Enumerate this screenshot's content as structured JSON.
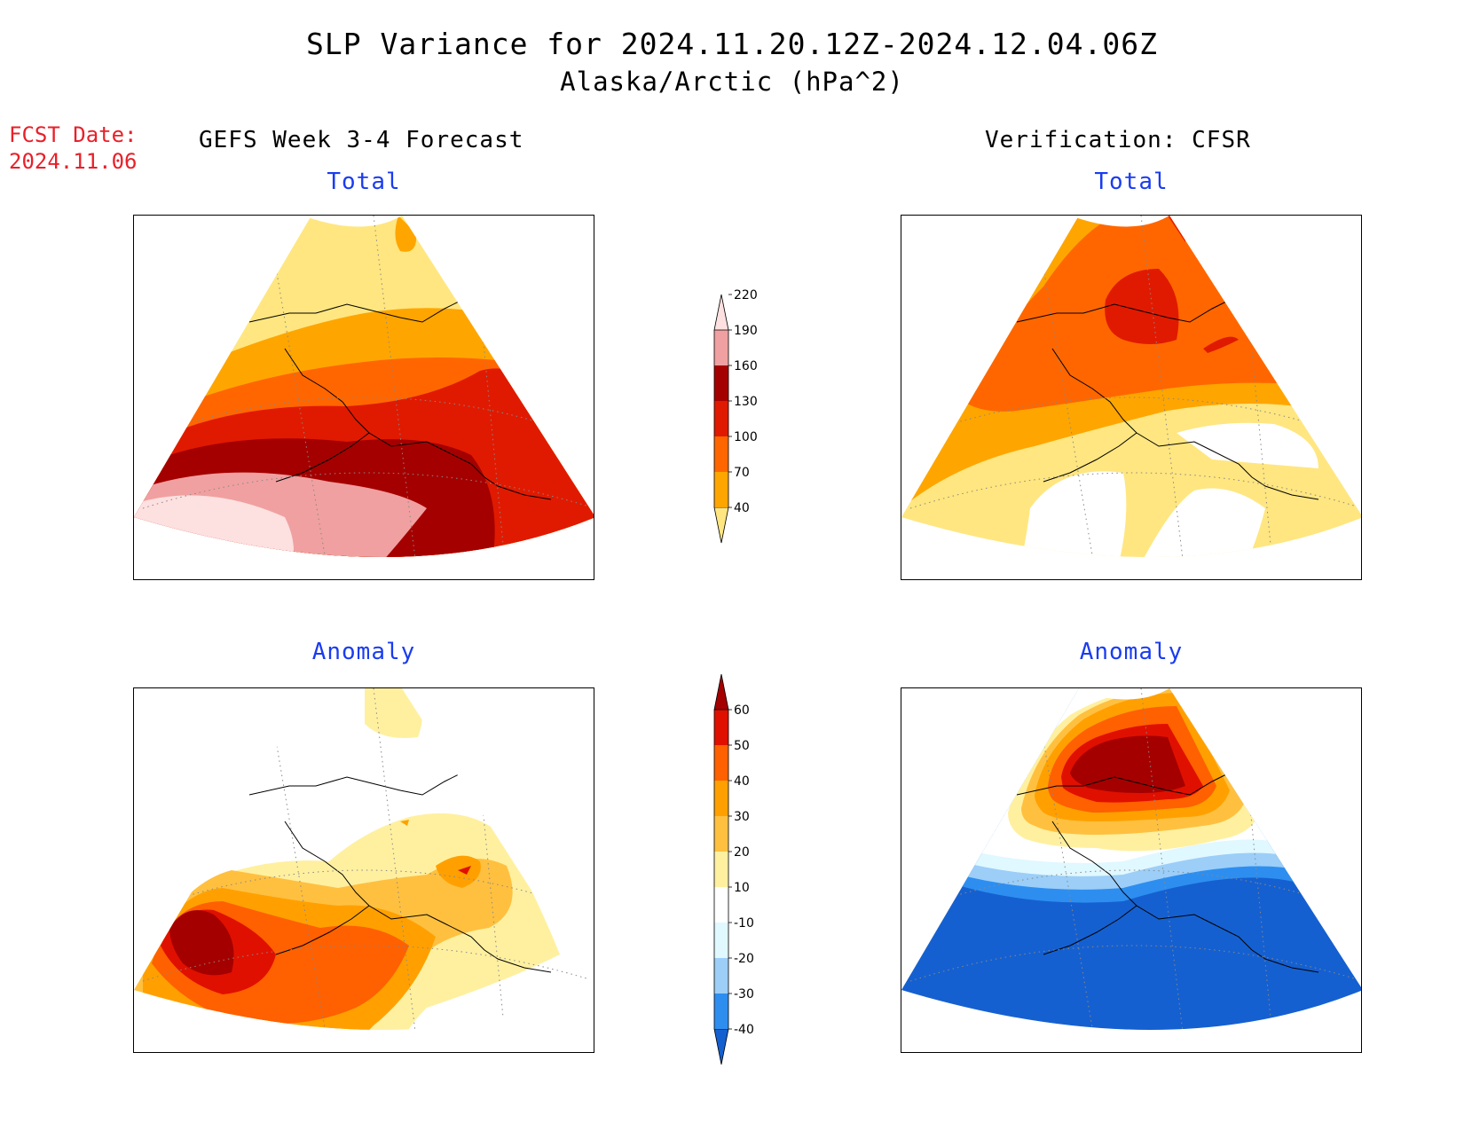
{
  "header": {
    "title": "SLP Variance for 2024.11.20.12Z-2024.12.04.06Z",
    "subtitle": "Alaska/Arctic (hPa^2)",
    "fcst_label": "FCST Date:",
    "fcst_date": "2024.11.06"
  },
  "columns": {
    "left": "GEFS Week 3-4 Forecast",
    "right": "Verification: CFSR"
  },
  "panels": {
    "forecast_total": {
      "title": "Total"
    },
    "verification_total": {
      "title": "Total"
    },
    "forecast_anomaly": {
      "title": "Anomaly"
    },
    "verification_anomaly": {
      "title": "Anomaly"
    }
  },
  "legend_total": {
    "levels": [
      "40",
      "70",
      "100",
      "130",
      "160",
      "190",
      "220"
    ],
    "colors": [
      "#ffe680",
      "#ffa500",
      "#ff6600",
      "#e01a00",
      "#a50000",
      "#f0a0a0",
      "#fde0e0"
    ]
  },
  "legend_anomaly": {
    "levels": [
      "-40",
      "-30",
      "-20",
      "-10",
      "10",
      "20",
      "30",
      "40",
      "50",
      "60"
    ],
    "colors": [
      "#1560d0",
      "#2d8ef0",
      "#9ccef8",
      "#e0f8ff",
      "#ffffff",
      "#fff0a0",
      "#ffc040",
      "#ffa000",
      "#ff6000",
      "#e01000",
      "#a50000"
    ]
  }
}
